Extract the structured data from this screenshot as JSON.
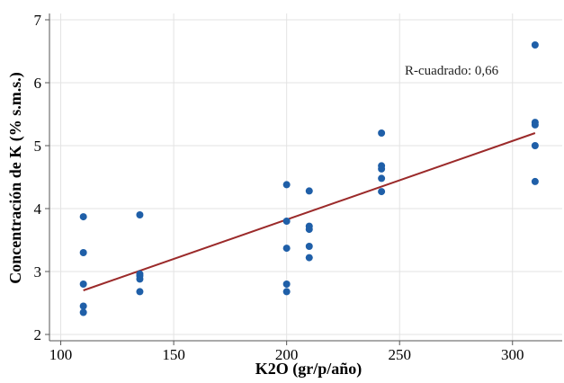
{
  "chart_data": {
    "type": "scatter",
    "title": "",
    "xlabel": "K2O (gr/p/año)",
    "ylabel": "Concentración de K (% s.m.s.)",
    "xlim": [
      95,
      322
    ],
    "ylim": [
      1.9,
      7.1
    ],
    "xticks": [
      100,
      150,
      200,
      250,
      300
    ],
    "yticks": [
      2,
      3,
      4,
      5,
      6,
      7
    ],
    "grid": true,
    "annotation": "R-cuadrado: 0,66",
    "colors": {
      "points": "#1f5fa8",
      "fit_line": "#9b2a2a",
      "grid": "#e3e3e3",
      "axis": "#555555"
    },
    "points": [
      {
        "x": 110,
        "y": 3.87
      },
      {
        "x": 110,
        "y": 3.3
      },
      {
        "x": 110,
        "y": 2.8
      },
      {
        "x": 110,
        "y": 2.45
      },
      {
        "x": 110,
        "y": 2.35
      },
      {
        "x": 135,
        "y": 3.9
      },
      {
        "x": 135,
        "y": 2.96
      },
      {
        "x": 135,
        "y": 2.93
      },
      {
        "x": 135,
        "y": 2.88
      },
      {
        "x": 135,
        "y": 2.68
      },
      {
        "x": 200,
        "y": 4.38
      },
      {
        "x": 200,
        "y": 3.8
      },
      {
        "x": 200,
        "y": 3.37
      },
      {
        "x": 200,
        "y": 2.8
      },
      {
        "x": 200,
        "y": 2.68
      },
      {
        "x": 210,
        "y": 4.28
      },
      {
        "x": 210,
        "y": 3.72
      },
      {
        "x": 210,
        "y": 3.67
      },
      {
        "x": 210,
        "y": 3.4
      },
      {
        "x": 210,
        "y": 3.22
      },
      {
        "x": 242,
        "y": 5.2
      },
      {
        "x": 242,
        "y": 4.68
      },
      {
        "x": 242,
        "y": 4.63
      },
      {
        "x": 242,
        "y": 4.48
      },
      {
        "x": 242,
        "y": 4.27
      },
      {
        "x": 310,
        "y": 6.6
      },
      {
        "x": 310,
        "y": 5.37
      },
      {
        "x": 310,
        "y": 5.33
      },
      {
        "x": 310,
        "y": 5.0
      },
      {
        "x": 310,
        "y": 4.43
      }
    ],
    "fit_line": {
      "x": [
        110,
        310
      ],
      "y": [
        2.7,
        5.2
      ]
    }
  }
}
